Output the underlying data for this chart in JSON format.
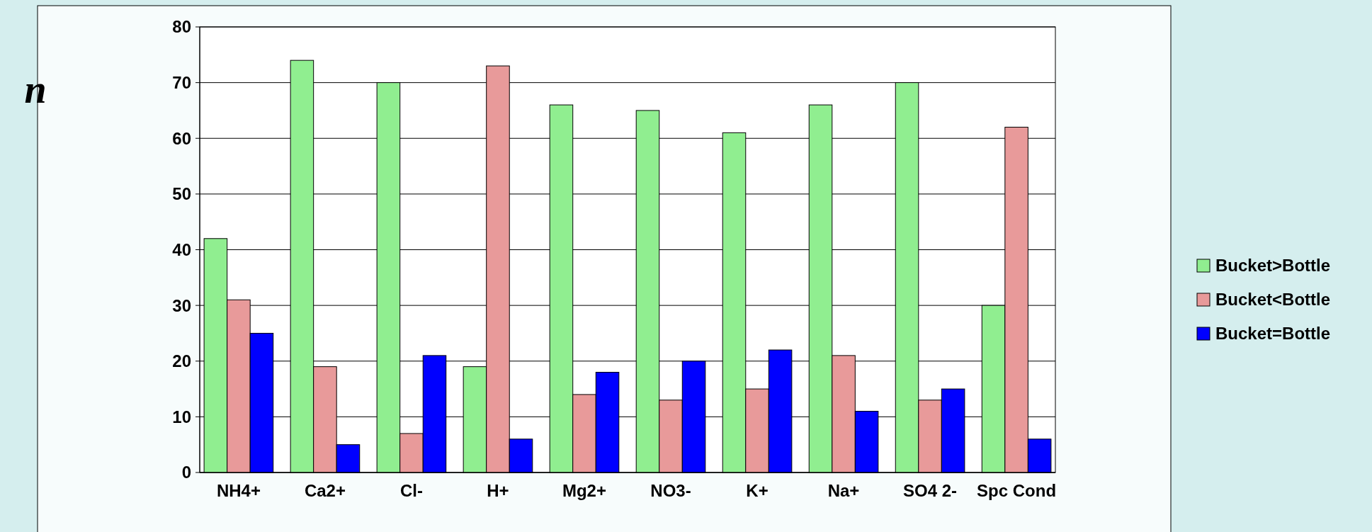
{
  "chart_data": {
    "type": "bar",
    "ylabel": "n",
    "categories": [
      "NH4+",
      "Ca2+",
      "Cl-",
      "H+",
      "Mg2+",
      "NO3-",
      "K+",
      "Na+",
      "SO4 2-",
      "Spc Cond"
    ],
    "series": [
      {
        "name": "Bucket>Bottle",
        "color": "#90ee90",
        "values": [
          42,
          74,
          70,
          19,
          66,
          65,
          61,
          66,
          70,
          30
        ]
      },
      {
        "name": "Bucket<Bottle",
        "color": "#e89a9a",
        "values": [
          31,
          19,
          7,
          73,
          14,
          13,
          15,
          21,
          13,
          62
        ]
      },
      {
        "name": "Bucket=Bottle",
        "color": "#0000ff",
        "values": [
          25,
          5,
          21,
          6,
          18,
          20,
          22,
          11,
          15,
          6
        ]
      }
    ],
    "ylim": [
      0,
      80
    ],
    "yticks": [
      0,
      10,
      20,
      30,
      40,
      50,
      60,
      70,
      80
    ],
    "grid": "y",
    "legend": "right"
  }
}
